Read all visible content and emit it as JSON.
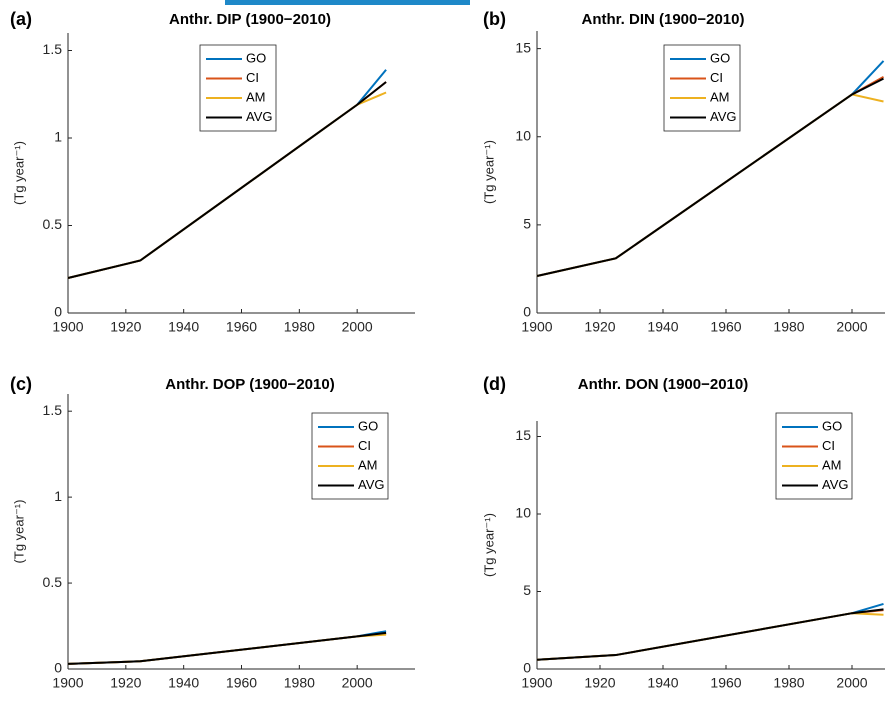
{
  "chart_data": [
    {
      "type": "line",
      "label": "(a)",
      "title": "Anthr. DIP (1900−2010)",
      "ylabel": "(Tg year⁻¹)",
      "x": [
        1900,
        1925,
        2000,
        2010
      ],
      "series": [
        {
          "name": "GO",
          "color": "#0072BD",
          "values": [
            0.2,
            0.3,
            1.19,
            1.39
          ]
        },
        {
          "name": "CI",
          "color": "#D95319",
          "values": [
            0.2,
            0.3,
            1.19,
            1.32
          ]
        },
        {
          "name": "AM",
          "color": "#EDB120",
          "values": [
            0.2,
            0.3,
            1.19,
            1.26
          ]
        },
        {
          "name": "AVG",
          "color": "#000000",
          "values": [
            0.2,
            0.3,
            1.19,
            1.32
          ]
        }
      ],
      "xlim": [
        1900,
        2020
      ],
      "ylim": [
        0,
        1.6
      ],
      "xticks": [
        1900,
        1920,
        1940,
        1960,
        1980,
        2000
      ],
      "yticks": [
        0,
        0.5,
        1,
        1.5
      ],
      "legend": "upper center"
    },
    {
      "type": "line",
      "label": "(b)",
      "title": "Anthr. DIN (1900−2010)",
      "ylabel": "(Tg year⁻¹)",
      "x": [
        1900,
        1925,
        2000,
        2010
      ],
      "series": [
        {
          "name": "GO",
          "color": "#0072BD",
          "values": [
            2.1,
            3.1,
            12.4,
            14.3
          ]
        },
        {
          "name": "CI",
          "color": "#D95319",
          "values": [
            2.1,
            3.1,
            12.4,
            13.4
          ]
        },
        {
          "name": "AM",
          "color": "#EDB120",
          "values": [
            2.1,
            3.1,
            12.4,
            12.0
          ]
        },
        {
          "name": "AVG",
          "color": "#000000",
          "values": [
            2.1,
            3.1,
            12.4,
            13.3
          ]
        }
      ],
      "xlim": [
        1900,
        2020
      ],
      "ylim": [
        0,
        16
      ],
      "xticks": [
        1900,
        1920,
        1940,
        1960,
        1980,
        2000
      ],
      "yticks": [
        0,
        5,
        10,
        15
      ],
      "legend": "upper center"
    },
    {
      "type": "line",
      "label": "(c)",
      "title": "Anthr. DOP (1900−2010)",
      "ylabel": "(Tg year⁻¹)",
      "x": [
        1900,
        1925,
        2000,
        2010
      ],
      "series": [
        {
          "name": "GO",
          "color": "#0072BD",
          "values": [
            0.03,
            0.045,
            0.19,
            0.22
          ]
        },
        {
          "name": "CI",
          "color": "#D95319",
          "values": [
            0.03,
            0.045,
            0.19,
            0.205
          ]
        },
        {
          "name": "AM",
          "color": "#EDB120",
          "values": [
            0.03,
            0.045,
            0.19,
            0.2
          ]
        },
        {
          "name": "AVG",
          "color": "#000000",
          "values": [
            0.03,
            0.045,
            0.19,
            0.21
          ]
        }
      ],
      "xlim": [
        1900,
        2020
      ],
      "ylim": [
        0,
        1.6
      ],
      "xticks": [
        1900,
        1920,
        1940,
        1960,
        1980,
        2000
      ],
      "yticks": [
        0,
        0.5,
        1,
        1.5
      ],
      "legend": "upper right"
    },
    {
      "type": "line",
      "label": "(d)",
      "title": "Anthr. DON (1900−2010)",
      "ylabel": "(Tg year⁻¹)",
      "x": [
        1900,
        1925,
        2000,
        2010
      ],
      "series": [
        {
          "name": "GO",
          "color": "#0072BD",
          "values": [
            0.6,
            0.9,
            3.6,
            4.2
          ]
        },
        {
          "name": "CI",
          "color": "#D95319",
          "values": [
            0.6,
            0.9,
            3.6,
            3.8
          ]
        },
        {
          "name": "AM",
          "color": "#EDB120",
          "values": [
            0.6,
            0.9,
            3.6,
            3.5
          ]
        },
        {
          "name": "AVG",
          "color": "#000000",
          "values": [
            0.6,
            0.9,
            3.6,
            3.85
          ]
        }
      ],
      "xlim": [
        1900,
        2020
      ],
      "ylim": [
        0,
        16
      ],
      "xticks": [
        1900,
        1920,
        1940,
        1960,
        1980,
        2000
      ],
      "yticks": [
        0,
        5,
        10,
        15
      ],
      "legend": "upper right"
    }
  ]
}
